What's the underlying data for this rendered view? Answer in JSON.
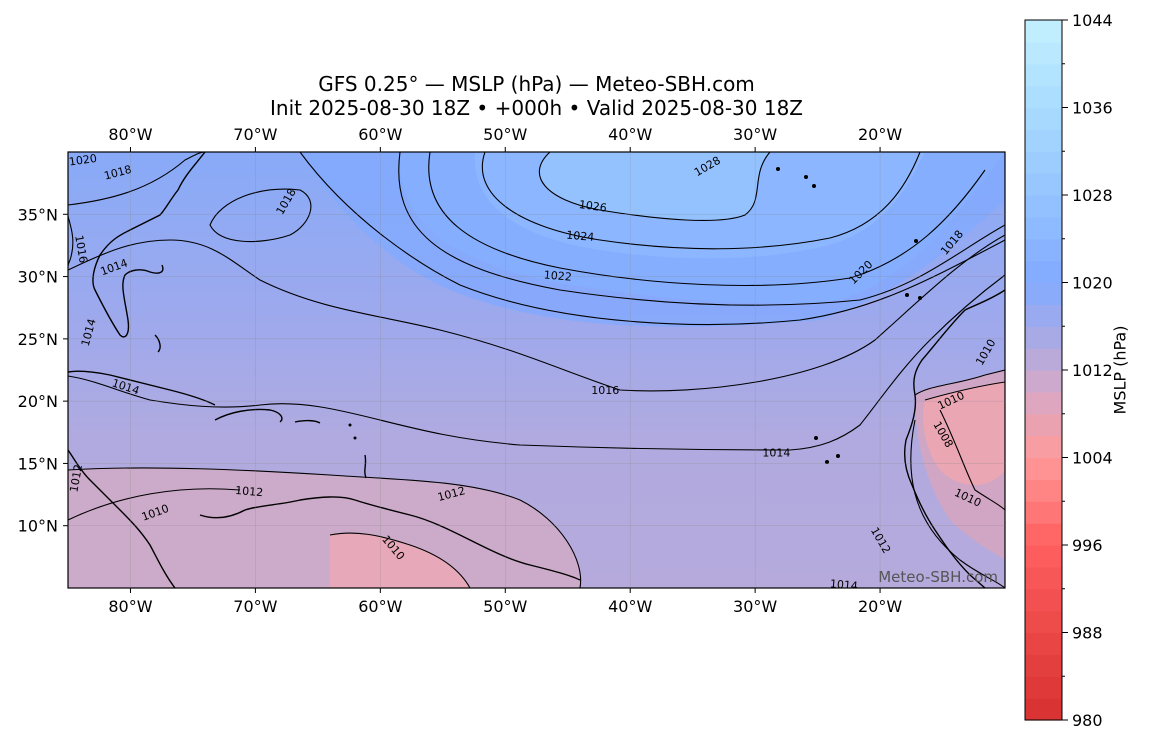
{
  "title": {
    "line1": "GFS 0.25° — MSLP (hPa) — Meteo-SBH.com",
    "line2": "Init 2025-08-30 18Z • +000h • Valid 2025-08-30 18Z"
  },
  "map": {
    "lon_ticks": [
      "80°W",
      "70°W",
      "60°W",
      "50°W",
      "40°W",
      "30°W",
      "20°W"
    ],
    "lon_values": [
      -80,
      -70,
      -60,
      -50,
      -40,
      -30,
      -20
    ],
    "lat_ticks": [
      "35°N",
      "30°N",
      "25°N",
      "20°N",
      "15°N",
      "10°N"
    ],
    "lat_values": [
      35,
      30,
      25,
      20,
      15,
      10
    ],
    "lon_range": [
      -85,
      -10
    ],
    "lat_range": [
      5,
      40
    ],
    "contour_labels": [
      {
        "text": "1020",
        "lon": -83.8,
        "lat": 39.3,
        "rot": -8
      },
      {
        "text": "1018",
        "lon": -81.0,
        "lat": 38.3,
        "rot": -15
      },
      {
        "text": "1018",
        "lon": -67.5,
        "lat": 36.0,
        "rot": -60
      },
      {
        "text": "1016",
        "lon": -84.0,
        "lat": 32.2,
        "rot": 80
      },
      {
        "text": "1014",
        "lon": -81.3,
        "lat": 30.7,
        "rot": -20
      },
      {
        "text": "1014",
        "lon": -83.3,
        "lat": 25.5,
        "rot": -75
      },
      {
        "text": "1014",
        "lon": -80.4,
        "lat": 21.1,
        "rot": 18
      },
      {
        "text": "1028",
        "lon": -33.8,
        "lat": 38.8,
        "rot": -30
      },
      {
        "text": "1026",
        "lon": -43.0,
        "lat": 35.6,
        "rot": 8
      },
      {
        "text": "1024",
        "lon": -44.0,
        "lat": 33.2,
        "rot": 5
      },
      {
        "text": "1022",
        "lon": -45.8,
        "lat": 30.0,
        "rot": 5
      },
      {
        "text": "1020",
        "lon": -21.5,
        "lat": 30.3,
        "rot": -45
      },
      {
        "text": "1018",
        "lon": -14.2,
        "lat": 32.7,
        "rot": -50
      },
      {
        "text": "1016",
        "lon": -42.0,
        "lat": 20.8,
        "rot": 0
      },
      {
        "text": "1014",
        "lon": -28.3,
        "lat": 15.8,
        "rot": 0
      },
      {
        "text": "1014",
        "lon": -22.9,
        "lat": 5.2,
        "rot": 5
      },
      {
        "text": "1012",
        "lon": -84.3,
        "lat": 13.8,
        "rot": -80
      },
      {
        "text": "1012",
        "lon": -70.5,
        "lat": 12.7,
        "rot": 5
      },
      {
        "text": "1012",
        "lon": -54.3,
        "lat": 12.5,
        "rot": -15
      },
      {
        "text": "1012",
        "lon": -20.0,
        "lat": 8.8,
        "rot": 60
      },
      {
        "text": "1010",
        "lon": -78.0,
        "lat": 11.0,
        "rot": -20
      },
      {
        "text": "1010",
        "lon": -59.0,
        "lat": 8.2,
        "rot": 50
      },
      {
        "text": "1010",
        "lon": -14.3,
        "lat": 20.0,
        "rot": -25
      },
      {
        "text": "1010",
        "lon": -11.5,
        "lat": 23.9,
        "rot": -60
      },
      {
        "text": "1010",
        "lon": -13.0,
        "lat": 12.2,
        "rot": 25
      },
      {
        "text": "1008",
        "lon": -15.0,
        "lat": 17.3,
        "rot": 60
      }
    ],
    "watermark": "Meteo-SBH.com"
  },
  "colorbar": {
    "label": "MSLP (hPa)",
    "min": 980,
    "max": 1044,
    "ticks": [
      "1044",
      "1036",
      "1028",
      "1020",
      "1012",
      "1004",
      "996",
      "988",
      "980"
    ],
    "tick_values": [
      1044,
      1036,
      1028,
      1020,
      1012,
      1004,
      996,
      988,
      980
    ],
    "color_stops": [
      {
        "value": 980,
        "color": "#d73030"
      },
      {
        "value": 996,
        "color": "#ff6060"
      },
      {
        "value": 1004,
        "color": "#ff9a9a"
      },
      {
        "value": 1010,
        "color": "#d7aac6"
      },
      {
        "value": 1014,
        "color": "#afaae0"
      },
      {
        "value": 1020,
        "color": "#82aaff"
      },
      {
        "value": 1028,
        "color": "#95c3ff"
      },
      {
        "value": 1036,
        "color": "#a9dcff"
      },
      {
        "value": 1044,
        "color": "#c4f0ff"
      }
    ]
  }
}
